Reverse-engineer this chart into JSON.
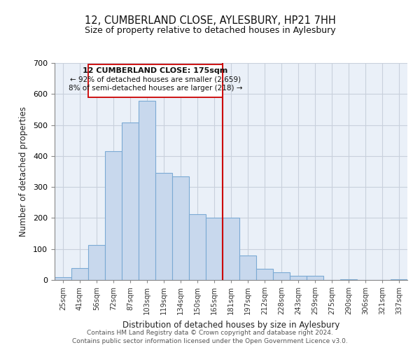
{
  "title": "12, CUMBERLAND CLOSE, AYLESBURY, HP21 7HH",
  "subtitle": "Size of property relative to detached houses in Aylesbury",
  "xlabel": "Distribution of detached houses by size in Aylesbury",
  "ylabel": "Number of detached properties",
  "bar_color": "#c8d8ed",
  "bar_edge_color": "#7baad4",
  "categories": [
    "25sqm",
    "41sqm",
    "56sqm",
    "72sqm",
    "87sqm",
    "103sqm",
    "119sqm",
    "134sqm",
    "150sqm",
    "165sqm",
    "181sqm",
    "197sqm",
    "212sqm",
    "228sqm",
    "243sqm",
    "259sqm",
    "275sqm",
    "290sqm",
    "306sqm",
    "321sqm",
    "337sqm"
  ],
  "values": [
    8,
    38,
    113,
    415,
    508,
    578,
    346,
    334,
    212,
    202,
    200,
    80,
    37,
    25,
    13,
    13,
    0,
    3,
    0,
    0,
    2
  ],
  "vline_color": "#cc0000",
  "annotation_text_line1": "12 CUMBERLAND CLOSE: 175sqm",
  "annotation_text_line2": "← 92% of detached houses are smaller (2,659)",
  "annotation_text_line3": "8% of semi-detached houses are larger (218) →",
  "ylim": [
    0,
    700
  ],
  "yticks": [
    0,
    100,
    200,
    300,
    400,
    500,
    600,
    700
  ],
  "footer1": "Contains HM Land Registry data © Crown copyright and database right 2024.",
  "footer2": "Contains public sector information licensed under the Open Government Licence v3.0.",
  "background_color": "#eaf0f8",
  "grid_color": "#c8d0dc"
}
